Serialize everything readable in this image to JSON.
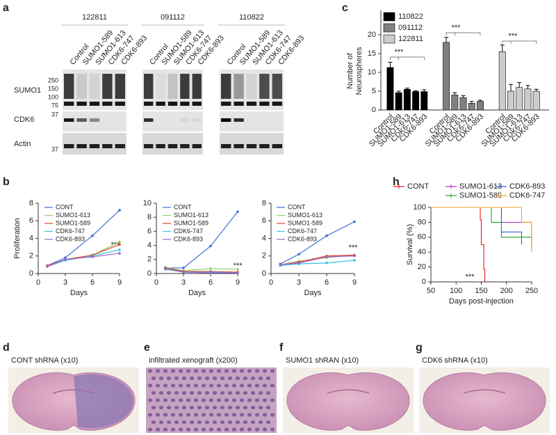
{
  "panel_letters": [
    "a",
    "b",
    "c",
    "d",
    "e",
    "f",
    "g",
    "h"
  ],
  "blot": {
    "cell_lines": [
      "122811",
      "091112",
      "110822"
    ],
    "lanes": [
      "Control",
      "SUMO1-589",
      "SUMO1-613",
      "CDK6-747",
      "CDK6-893"
    ],
    "rows": [
      "SUMO1",
      "CDK6",
      "Actin"
    ],
    "markers": [
      250,
      150,
      100,
      75,
      37,
      37
    ]
  },
  "histology": [
    {
      "caption": "CONT shRNA (x10)"
    },
    {
      "caption": "infiltrated xenograft (x200)"
    },
    {
      "caption": "SUMO1 shRAN (x10)"
    },
    {
      "caption": "CDK6 shRNA (x10)"
    }
  ],
  "chart_data": [
    {
      "type": "bar",
      "ylabel": [
        "Number of",
        "Neurospheres"
      ],
      "categories": [
        "Control",
        "SUMO1-589",
        "SUMO1-613",
        "CDK6-747",
        "CDK6-893"
      ],
      "series": [
        {
          "name": "110822",
          "color": "#000000",
          "values": [
            11.3,
            4.6,
            5.5,
            4.9,
            4.9
          ],
          "errors": [
            1.4,
            0.4,
            0.3,
            0.2,
            0.5
          ]
        },
        {
          "name": "091112",
          "color": "#808080",
          "values": [
            18,
            4,
            3.3,
            1.8,
            2.3
          ],
          "errors": [
            1.3,
            0.6,
            0.5,
            0.5,
            0.3
          ]
        },
        {
          "name": "122811",
          "color": "#cccccc",
          "values": [
            15.5,
            5,
            6,
            5.6,
            5
          ],
          "errors": [
            1.8,
            1.8,
            1.3,
            0.9,
            0.5
          ]
        }
      ],
      "ylim": [
        0,
        20
      ],
      "yticks": [
        0,
        5,
        10,
        15,
        20
      ],
      "annotations": [
        "***",
        "***",
        "***"
      ]
    },
    {
      "type": "line",
      "ylabel": "Proliferation",
      "xlabel": "Days",
      "x": [
        1,
        3,
        6,
        9
      ],
      "xlim": [
        0,
        9
      ],
      "xticks": [
        0,
        3,
        6,
        9
      ],
      "ylim": [
        0,
        8
      ],
      "yticks": [
        0,
        2,
        4,
        6,
        8
      ],
      "series": [
        {
          "name": "CONT",
          "color": "#3a6fd8",
          "values": [
            0.9,
            1.8,
            4.3,
            7.2
          ]
        },
        {
          "name": "SUMO1-613",
          "color": "#8fd16a",
          "values": [
            0.9,
            1.6,
            2.1,
            3.6
          ]
        },
        {
          "name": "SUMO1-589",
          "color": "#e0452e",
          "values": [
            0.9,
            1.6,
            2.1,
            3.3
          ]
        },
        {
          "name": "CDK6-747",
          "color": "#36c4e0",
          "values": [
            0.8,
            1.5,
            2.0,
            2.7
          ]
        },
        {
          "name": "CDK6-893",
          "color": "#a062d0",
          "values": [
            0.8,
            1.6,
            1.9,
            2.3
          ]
        }
      ],
      "annotations": [
        "***"
      ]
    },
    {
      "type": "line",
      "xlabel": "Days",
      "x": [
        1,
        3,
        6,
        9
      ],
      "xlim": [
        0,
        9
      ],
      "xticks": [
        0,
        3,
        6,
        9
      ],
      "ylim": [
        0,
        10
      ],
      "yticks": [
        0,
        2,
        4,
        6,
        8,
        10
      ],
      "series": [
        {
          "name": "CONT",
          "color": "#3a6fd8",
          "values": [
            0.8,
            0.8,
            3.9,
            8.8
          ]
        },
        {
          "name": "SUMO1-613",
          "color": "#8fd16a",
          "values": [
            0.9,
            0.4,
            0.7,
            0.6
          ]
        },
        {
          "name": "SUMO1-589",
          "color": "#e0452e",
          "values": [
            0.8,
            0.3,
            0.3,
            0.2
          ]
        },
        {
          "name": "CDK6-747",
          "color": "#36c4e0",
          "values": [
            0.6,
            0.2,
            0.2,
            0.1
          ]
        },
        {
          "name": "CDK6-893",
          "color": "#a062d0",
          "values": [
            0.7,
            0.2,
            0.1,
            0.1
          ]
        }
      ],
      "annotations": [
        "***"
      ]
    },
    {
      "type": "line",
      "xlabel": "Days",
      "x": [
        1,
        3,
        6,
        9
      ],
      "xlim": [
        0,
        9
      ],
      "xticks": [
        0,
        3,
        6,
        9
      ],
      "ylim": [
        0,
        8
      ],
      "yticks": [
        0,
        2,
        4,
        6,
        8
      ],
      "series": [
        {
          "name": "CONT",
          "color": "#3a6fd8",
          "values": [
            1.1,
            2.2,
            4.3,
            5.9
          ]
        },
        {
          "name": "SUMO1-613",
          "color": "#8fd16a",
          "values": [
            1.0,
            1.4,
            1.8,
            2.1
          ]
        },
        {
          "name": "SUMO1-589",
          "color": "#e0452e",
          "values": [
            1.0,
            1.3,
            2.0,
            2.1
          ]
        },
        {
          "name": "CDK6-747",
          "color": "#36c4e0",
          "values": [
            0.9,
            1.1,
            1.2,
            1.5
          ]
        },
        {
          "name": "CDK6-893",
          "color": "#a062d0",
          "values": [
            1.0,
            1.2,
            1.9,
            2.0
          ]
        }
      ],
      "annotations": [
        "***"
      ]
    },
    {
      "type": "step",
      "ylabel": "Survival (%)",
      "xlabel": "Days post-injection",
      "xlim": [
        50,
        250
      ],
      "xticks": [
        50,
        100,
        150,
        200,
        250
      ],
      "ylim": [
        0,
        100
      ],
      "yticks": [
        0,
        20,
        40,
        60,
        80,
        100
      ],
      "series": [
        {
          "name": "CONT",
          "color": "#e41a1c",
          "x": [
            50,
            148,
            150,
            155,
            157
          ],
          "y": [
            100,
            83,
            50,
            17,
            0
          ]
        },
        {
          "name": "SUMO1-613",
          "color": "#b030d0",
          "x": [
            50,
            190,
            250
          ],
          "y": [
            100,
            80,
            50
          ]
        },
        {
          "name": "CDK6-893",
          "color": "#3060d0",
          "x": [
            50,
            190,
            230
          ],
          "y": [
            100,
            67,
            50
          ]
        },
        {
          "name": "SUMO1-589",
          "color": "#20a020",
          "x": [
            50,
            170,
            190,
            250
          ],
          "y": [
            100,
            80,
            60,
            40
          ]
        },
        {
          "name": "CDK6-747",
          "color": "#f0a020",
          "x": [
            50,
            230,
            250
          ],
          "y": [
            100,
            80,
            40
          ]
        }
      ],
      "annotations": [
        "***"
      ]
    }
  ]
}
